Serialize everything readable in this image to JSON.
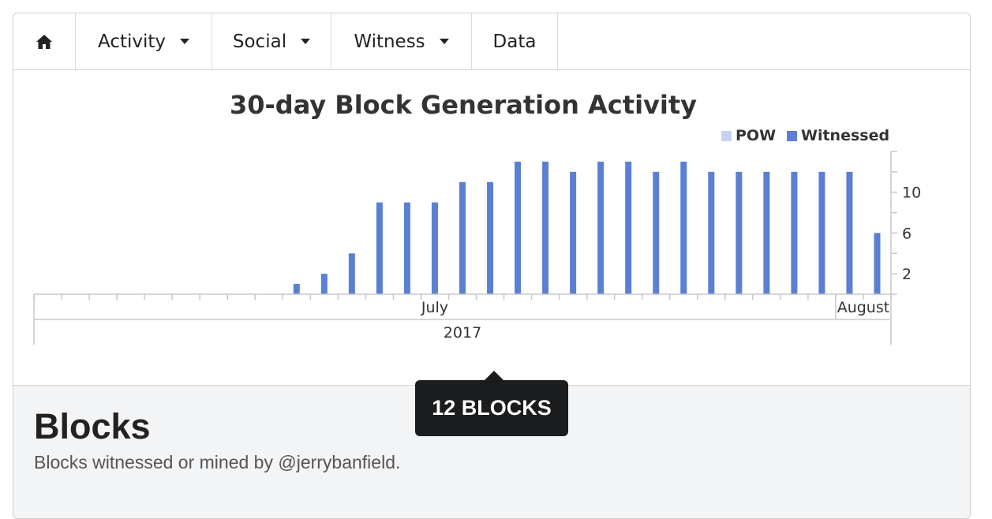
{
  "nav": {
    "home_icon": "home-icon",
    "items": [
      {
        "label": "Activity",
        "dropdown": true
      },
      {
        "label": "Social",
        "dropdown": true
      },
      {
        "label": "Witness",
        "dropdown": true
      },
      {
        "label": "Data",
        "dropdown": false
      }
    ]
  },
  "chart_data": {
    "type": "bar",
    "title": "30-day Block Generation Activity",
    "legend": [
      {
        "name": "POW",
        "color": "#c6d2ef"
      },
      {
        "name": "Witnessed",
        "color": "#5b7fd4"
      }
    ],
    "legend_position": "top-right",
    "series": [
      {
        "name": "POW",
        "values": [
          0,
          0,
          0,
          0,
          0,
          0,
          0,
          0,
          0,
          0,
          0,
          0,
          0,
          0,
          0,
          0,
          0,
          0,
          0,
          0,
          0,
          0,
          0,
          0,
          0,
          0,
          0,
          0,
          0,
          0,
          0
        ]
      },
      {
        "name": "Witnessed",
        "values": [
          0,
          0,
          0,
          0,
          0,
          0,
          0,
          0,
          0,
          1,
          2,
          4,
          9,
          9,
          9,
          11,
          11,
          13,
          13,
          12,
          13,
          13,
          12,
          13,
          12,
          12,
          12,
          12,
          12,
          12,
          6
        ]
      }
    ],
    "yticks": [
      "2",
      "6",
      "10"
    ],
    "ylim": [
      0,
      14
    ],
    "y_axis_side": "right",
    "x_month_labels": [
      "July",
      "August"
    ],
    "x_year_label": "2017"
  },
  "blocks": {
    "title": "Blocks",
    "subtitle": "Blocks witnessed or mined by @jerrybanfield."
  },
  "tooltip": {
    "text": "12 BLOCKS"
  }
}
